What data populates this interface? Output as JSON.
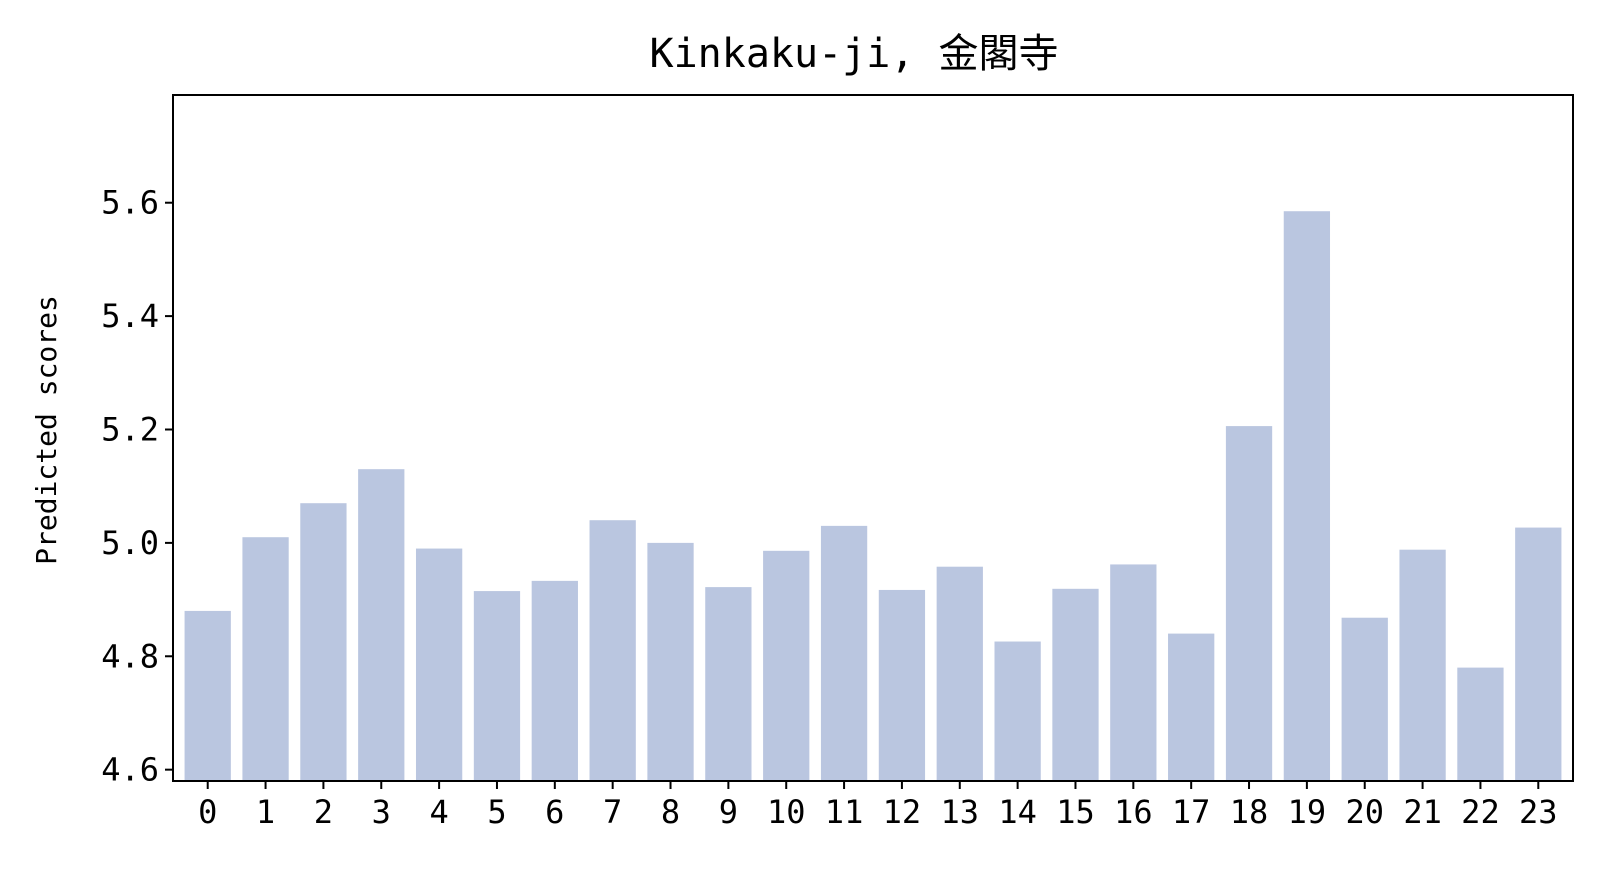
{
  "chart_data": {
    "type": "bar",
    "title": "Kinkaku-ji, 金閣寺",
    "xlabel": "",
    "ylabel": "Predicted scores",
    "categories": [
      "0",
      "1",
      "2",
      "3",
      "4",
      "5",
      "6",
      "7",
      "8",
      "9",
      "10",
      "11",
      "12",
      "13",
      "14",
      "15",
      "16",
      "17",
      "18",
      "19",
      "20",
      "21",
      "22",
      "23"
    ],
    "values": [
      4.88,
      5.01,
      5.07,
      5.13,
      4.99,
      4.915,
      4.933,
      5.04,
      5.0,
      4.922,
      4.986,
      5.03,
      4.917,
      4.958,
      4.826,
      4.919,
      4.962,
      4.84,
      5.206,
      5.585,
      4.868,
      4.988,
      4.78,
      5.027
    ],
    "yticks": [
      "4.6",
      "4.8",
      "5.0",
      "5.2",
      "5.4",
      "5.6"
    ],
    "ylim": [
      4.58,
      5.79
    ],
    "grid": false,
    "bar_color": "#bac6e0"
  }
}
